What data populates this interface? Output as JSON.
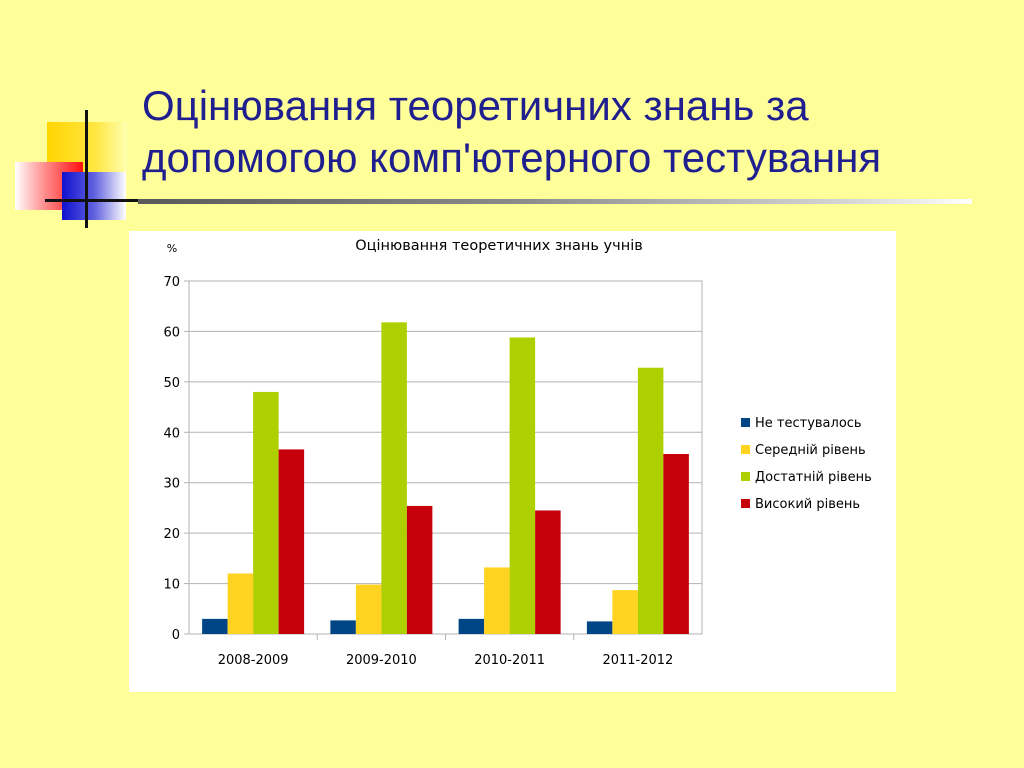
{
  "slide": {
    "title": "Оцінювання теоретичних знань за допомогою комп'ютерного тестування"
  },
  "colors": {
    "background": "#FFFF99",
    "title": "#1F1F8F"
  },
  "chart_data": {
    "type": "bar",
    "title": "Оцінювання теоретичних знань учнів",
    "ylabel": "%",
    "xlabel": "",
    "ylim": [
      0,
      70
    ],
    "yticks": [
      0,
      10,
      20,
      30,
      40,
      50,
      60,
      70
    ],
    "grid": true,
    "legend_position": "right",
    "categories": [
      "2008-2009",
      "2009-2010",
      "2010-2011",
      "2011-2012"
    ],
    "series": [
      {
        "name": "Не тестувалось",
        "color": "#004586",
        "values": [
          3,
          2.7,
          3,
          2.5
        ]
      },
      {
        "name": "Середній рівень",
        "color": "#FFD320",
        "values": [
          12,
          9.8,
          13.2,
          8.7
        ]
      },
      {
        "name": "Достатній рівень",
        "color": "#AECF00",
        "values": [
          48,
          61.8,
          58.8,
          52.8
        ]
      },
      {
        "name": "Високий рівень",
        "color": "#C5000B",
        "values": [
          36.6,
          25.4,
          24.5,
          35.7
        ]
      }
    ]
  }
}
